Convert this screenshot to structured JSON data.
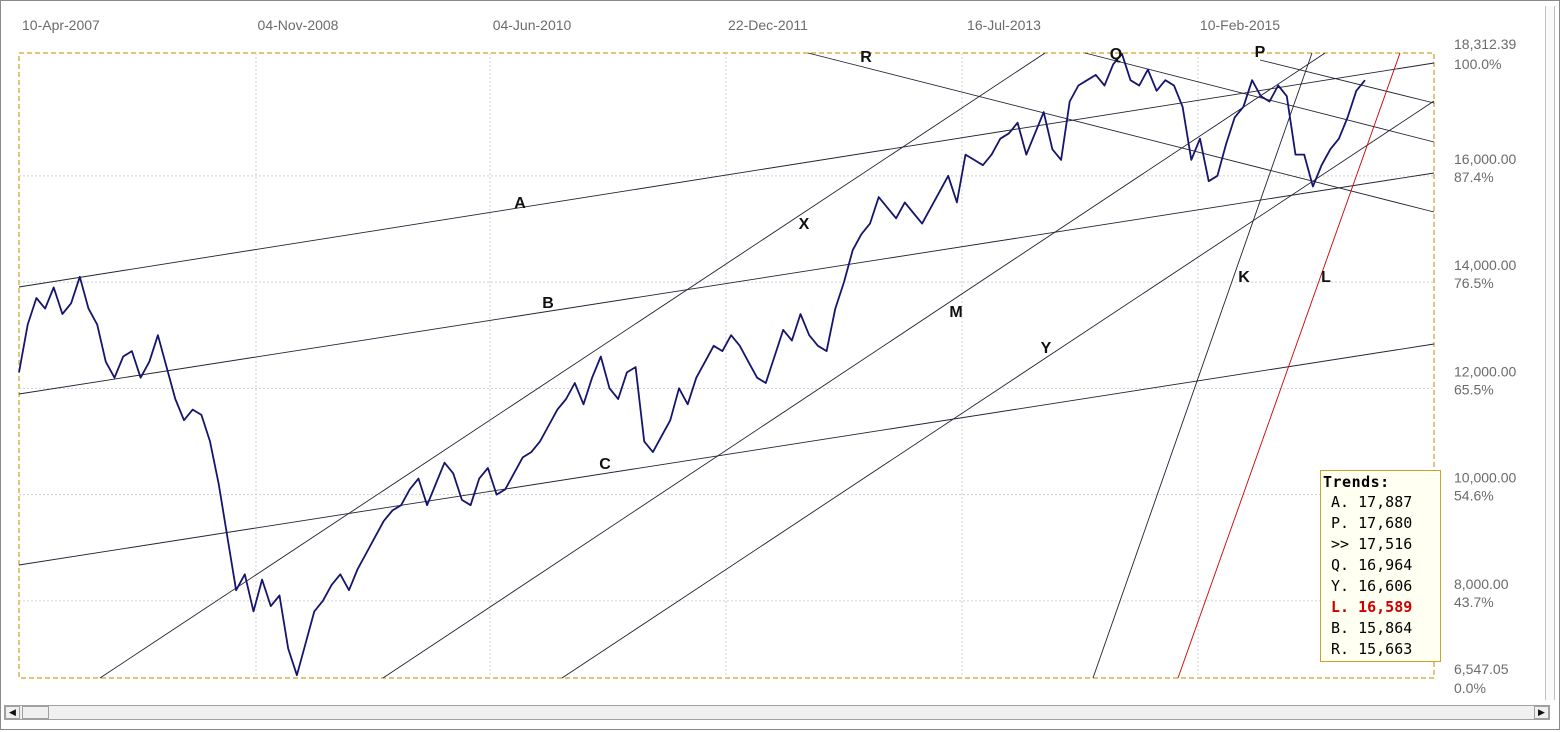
{
  "chart_data": {
    "type": "line",
    "x_tick_labels": [
      "10-Apr-2007",
      "04-Nov-2008",
      "04-Jun-2010",
      "22-Dec-2011",
      "16-Jul-2013",
      "10-Feb-2015"
    ],
    "y_price_labels": [
      "18,312.39",
      "16,000.00",
      "14,000.00",
      "12,000.00",
      "10,000.00",
      "8,000.00",
      "6,547.05"
    ],
    "y_price_values": [
      18312.39,
      16000,
      14000,
      12000,
      10000,
      8000,
      6547.05
    ],
    "y_percent_labels": [
      "100.0%",
      "87.4%",
      "76.5%",
      "65.5%",
      "54.6%",
      "43.7%",
      "0.0%"
    ],
    "ylim": [
      6547.05,
      18312.39
    ],
    "grid": true,
    "series": [
      {
        "values": [
          12300,
          13200,
          13700,
          13500,
          13900,
          13400,
          13600,
          14100,
          13500,
          13200,
          12500,
          12200,
          12600,
          12700,
          12200,
          12500,
          13000,
          12400,
          11800,
          11400,
          11600,
          11500,
          11000,
          10200,
          9200,
          8200,
          8500,
          7800,
          8400,
          7900,
          8100,
          7100,
          6600,
          7200,
          7800,
          8000,
          8300,
          8500,
          8200,
          8600,
          8900,
          9200,
          9500,
          9700,
          9800,
          10100,
          10300,
          9800,
          10200,
          10600,
          10400,
          9900,
          9800,
          10300,
          10500,
          10000,
          10100,
          10400,
          10700,
          10800,
          11000,
          11300,
          11600,
          11800,
          12100,
          11700,
          12200,
          12600,
          12000,
          11800,
          12300,
          12400,
          11000,
          10800,
          11100,
          11400,
          12000,
          11700,
          12200,
          12500,
          12800,
          12700,
          13000,
          12800,
          12500,
          12200,
          12100,
          12600,
          13100,
          12900,
          13400,
          13000,
          12800,
          12700,
          13500,
          14000,
          14600,
          14900,
          15100,
          15600,
          15400,
          15200,
          15500,
          15300,
          15100,
          15400,
          15700,
          16000,
          15500,
          16400,
          16300,
          16200,
          16400,
          16700,
          16800,
          17000,
          16400,
          16800,
          17200,
          16500,
          16300,
          17400,
          17700,
          17800,
          17900,
          17700,
          18100,
          18300,
          17800,
          17700,
          18000,
          17600,
          17800,
          17700,
          17300,
          16300,
          16700,
          15900,
          16000,
          16600,
          17100,
          17300,
          17800,
          17500,
          17400,
          17700,
          17500,
          16400,
          16400,
          15800,
          16200,
          16500,
          16700,
          17100,
          17600,
          17800
        ]
      }
    ],
    "trend_line_labels": [
      "A",
      "B",
      "C",
      "X",
      "M",
      "Y",
      "R",
      "Q",
      "P",
      "K",
      "L"
    ],
    "trends_panel": {
      "title": "Trends:",
      "rows": [
        {
          "label": "A.",
          "value": "17,887"
        },
        {
          "label": "P.",
          "value": "17,680"
        },
        {
          "label": ">>",
          "value": "17,516"
        },
        {
          "label": "Q.",
          "value": "16,964"
        },
        {
          "label": "Y.",
          "value": "16,606"
        },
        {
          "label": "L.",
          "value": "16,589"
        },
        {
          "label": "B.",
          "value": "15,864"
        },
        {
          "label": "R.",
          "value": "15,663"
        }
      ]
    },
    "colors": {
      "series": "#15156e",
      "trend_lines": "#222233",
      "highlight_trend": "#cc0000",
      "border": "#c9a227",
      "grid": "#d0d0d0"
    }
  }
}
